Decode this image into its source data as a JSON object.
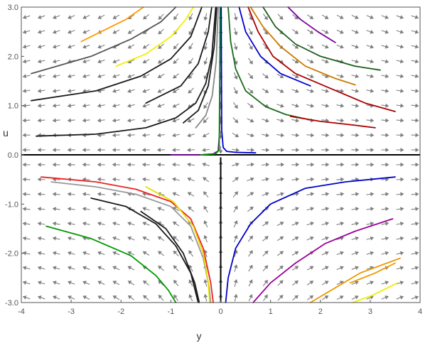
{
  "chart_data": {
    "type": "line",
    "title": "",
    "xlabel": "y",
    "ylabel": "u",
    "xlim": [
      -4,
      4
    ],
    "ylim": [
      -3,
      3
    ],
    "xticks": [
      -4,
      -3,
      -2,
      -1,
      0,
      1,
      2,
      3,
      4
    ],
    "yticks": [
      -3,
      -2,
      -1,
      0,
      1,
      2,
      3
    ],
    "xtick_labels": [
      "-4",
      "-3",
      "-2",
      "-1",
      "0",
      "1",
      "2",
      "3",
      "4"
    ],
    "ytick_labels": [
      "-3.0",
      "-2.0",
      "-1.0",
      "0.0",
      "1.0",
      "2.0",
      "3.0"
    ],
    "grid": false,
    "legend": "none",
    "direction_field": {
      "color": "#7f7f7f",
      "x_range": [
        -3.9,
        3.9
      ],
      "x_step": 0.3,
      "y_range": [
        -2.9,
        2.9
      ],
      "y_step": 0.3,
      "description": "slope field with arrows pointing toward u = 0 and away from y = 0"
    },
    "reference_lines": [
      {
        "orientation": "horizontal",
        "value": 0,
        "color": "#000000"
      },
      {
        "orientation": "vertical",
        "value": 0,
        "color": "#000000",
        "range": [
          -3,
          -0.05
        ]
      }
    ],
    "series": [
      {
        "color": "#1a1a1a",
        "points": [
          [
            -3.7,
            0.38
          ],
          [
            -2.5,
            0.42
          ],
          [
            -1.5,
            0.55
          ],
          [
            -0.9,
            0.75
          ],
          [
            -0.5,
            1.05
          ],
          [
            -0.3,
            1.45
          ],
          [
            -0.18,
            2.0
          ],
          [
            -0.1,
            3.0
          ]
        ]
      },
      {
        "color": "#1a1a1a",
        "points": [
          [
            -3.8,
            1.1
          ],
          [
            -2.5,
            1.3
          ],
          [
            -1.6,
            1.6
          ],
          [
            -1.0,
            1.95
          ],
          [
            -0.6,
            2.4
          ],
          [
            -0.38,
            3.0
          ]
        ]
      },
      {
        "color": "#555555",
        "points": [
          [
            -3.8,
            1.65
          ],
          [
            -2.6,
            2.0
          ],
          [
            -1.8,
            2.35
          ],
          [
            -1.2,
            2.7
          ],
          [
            -0.9,
            3.0
          ]
        ]
      },
      {
        "color": "#f0f000",
        "points": [
          [
            -2.1,
            1.8
          ],
          [
            -1.5,
            2.05
          ],
          [
            -1.0,
            2.4
          ],
          [
            -0.7,
            2.75
          ],
          [
            -0.55,
            3.0
          ]
        ]
      },
      {
        "color": "#ff9900",
        "points": [
          [
            -2.8,
            2.3
          ],
          [
            -2.3,
            2.55
          ],
          [
            -1.9,
            2.75
          ],
          [
            -1.55,
            3.0
          ]
        ]
      },
      {
        "color": "#1a1a1a",
        "points": [
          [
            -1.5,
            1.05
          ],
          [
            -0.8,
            1.4
          ],
          [
            -0.45,
            1.85
          ],
          [
            -0.25,
            2.5
          ],
          [
            -0.18,
            3.0
          ]
        ]
      },
      {
        "color": "#1a1a1a",
        "points": [
          [
            -0.75,
            0.65
          ],
          [
            -0.45,
            0.9
          ],
          [
            -0.25,
            1.4
          ],
          [
            -0.13,
            2.2
          ],
          [
            -0.08,
            3.0
          ]
        ]
      },
      {
        "color": "#888888",
        "points": [
          [
            -0.5,
            0.55
          ],
          [
            -0.3,
            0.8
          ],
          [
            -0.17,
            1.2
          ],
          [
            -0.09,
            1.9
          ],
          [
            -0.05,
            3.0
          ]
        ]
      },
      {
        "color": "#7a0099",
        "points": [
          [
            -1.0,
            0.0
          ],
          [
            -0.4,
            0.0
          ],
          [
            -0.15,
            0.02
          ],
          [
            -0.05,
            0.08
          ],
          [
            -0.02,
            0.5
          ],
          [
            -0.01,
            3.0
          ]
        ]
      },
      {
        "color": "#009900",
        "points": [
          [
            -0.4,
            0.0
          ],
          [
            -0.1,
            0.02
          ],
          [
            -0.03,
            0.1
          ],
          [
            -0.01,
            3.0
          ]
        ]
      },
      {
        "color": "#0000cc",
        "points": [
          [
            0.7,
            0.04
          ],
          [
            0.3,
            0.05
          ],
          [
            0.12,
            0.07
          ],
          [
            0.05,
            0.15
          ],
          [
            0.02,
            0.5
          ],
          [
            0.01,
            3.0
          ]
        ]
      },
      {
        "color": "#1a6b1a",
        "points": [
          [
            0.15,
            3.0
          ],
          [
            0.2,
            2.3
          ],
          [
            0.3,
            1.75
          ],
          [
            0.5,
            1.3
          ],
          [
            0.9,
            0.98
          ],
          [
            1.3,
            0.82
          ],
          [
            1.7,
            0.73
          ]
        ]
      },
      {
        "color": "#0000cc",
        "points": [
          [
            0.37,
            3.0
          ],
          [
            0.5,
            2.5
          ],
          [
            0.8,
            2.0
          ],
          [
            1.2,
            1.65
          ],
          [
            1.8,
            1.4
          ]
        ]
      },
      {
        "color": "#aa0000",
        "points": [
          [
            0.55,
            3.0
          ],
          [
            0.75,
            2.5
          ],
          [
            1.05,
            2.0
          ],
          [
            1.5,
            1.65
          ],
          [
            2.2,
            1.35
          ],
          [
            2.9,
            1.05
          ],
          [
            3.5,
            0.88
          ]
        ]
      },
      {
        "color": "#cc7a00",
        "points": [
          [
            0.6,
            3.0
          ],
          [
            0.85,
            2.6
          ],
          [
            1.2,
            2.2
          ],
          [
            1.7,
            1.8
          ],
          [
            2.3,
            1.55
          ],
          [
            2.7,
            1.42
          ]
        ]
      },
      {
        "color": "#aa0000",
        "points": [
          [
            1.4,
            0.78
          ],
          [
            2.0,
            0.68
          ],
          [
            2.7,
            0.6
          ],
          [
            3.1,
            0.55
          ]
        ]
      },
      {
        "color": "#1a5e1a",
        "points": [
          [
            0.85,
            3.0
          ],
          [
            1.1,
            2.6
          ],
          [
            1.5,
            2.25
          ],
          [
            2.0,
            2.0
          ],
          [
            2.7,
            1.8
          ],
          [
            3.2,
            1.72
          ]
        ]
      },
      {
        "color": "#7a0099",
        "points": [
          [
            1.35,
            3.0
          ],
          [
            1.6,
            2.75
          ],
          [
            1.95,
            2.5
          ],
          [
            2.3,
            2.28
          ]
        ]
      },
      {
        "color": "#ee2222",
        "points": [
          [
            -3.6,
            -0.45
          ],
          [
            -2.5,
            -0.55
          ],
          [
            -1.7,
            -0.7
          ],
          [
            -1.0,
            -0.95
          ],
          [
            -0.6,
            -1.3
          ],
          [
            -0.35,
            -1.9
          ],
          [
            -0.2,
            -2.6
          ],
          [
            -0.15,
            -3.0
          ]
        ]
      },
      {
        "color": "#999999",
        "points": [
          [
            -3.4,
            -0.55
          ],
          [
            -2.5,
            -0.65
          ],
          [
            -1.7,
            -0.8
          ],
          [
            -1.0,
            -1.05
          ],
          [
            -0.6,
            -1.45
          ],
          [
            -0.35,
            -2.1
          ],
          [
            -0.23,
            -2.7
          ],
          [
            -0.2,
            -3.0
          ]
        ]
      },
      {
        "color": "#1a1a1a",
        "points": [
          [
            -2.6,
            -0.88
          ],
          [
            -1.9,
            -1.05
          ],
          [
            -1.3,
            -1.4
          ],
          [
            -0.9,
            -1.85
          ],
          [
            -0.6,
            -2.4
          ],
          [
            -0.45,
            -3.0
          ]
        ]
      },
      {
        "color": "#1a1a1a",
        "points": [
          [
            -1.6,
            -1.15
          ],
          [
            -1.1,
            -1.5
          ],
          [
            -0.75,
            -2.0
          ],
          [
            -0.52,
            -2.6
          ],
          [
            -0.43,
            -3.0
          ]
        ]
      },
      {
        "color": "#e0e000",
        "points": [
          [
            -1.5,
            -0.65
          ],
          [
            -0.95,
            -0.95
          ],
          [
            -0.55,
            -1.45
          ],
          [
            -0.35,
            -2.0
          ],
          [
            -0.25,
            -2.6
          ],
          [
            -0.22,
            -3.0
          ]
        ]
      },
      {
        "color": "#009900",
        "points": [
          [
            -3.5,
            -1.45
          ],
          [
            -2.6,
            -1.7
          ],
          [
            -1.8,
            -2.05
          ],
          [
            -1.3,
            -2.45
          ],
          [
            -1.05,
            -2.75
          ],
          [
            -0.9,
            -3.0
          ]
        ]
      },
      {
        "color": "#0000cc",
        "points": [
          [
            0.1,
            -3.0
          ],
          [
            0.15,
            -2.5
          ],
          [
            0.3,
            -1.9
          ],
          [
            0.6,
            -1.4
          ],
          [
            1.0,
            -1.0
          ],
          [
            1.7,
            -0.68
          ],
          [
            2.5,
            -0.55
          ],
          [
            3.5,
            -0.45
          ]
        ]
      },
      {
        "color": "#990099",
        "points": [
          [
            0.65,
            -3.0
          ],
          [
            1.0,
            -2.6
          ],
          [
            1.5,
            -2.2
          ],
          [
            2.1,
            -1.8
          ],
          [
            2.7,
            -1.55
          ],
          [
            3.45,
            -1.3
          ]
        ]
      },
      {
        "color": "#ee9900",
        "points": [
          [
            1.8,
            -3.0
          ],
          [
            2.3,
            -2.7
          ],
          [
            2.8,
            -2.4
          ],
          [
            3.6,
            -2.1
          ]
        ]
      },
      {
        "color": "#ee9900",
        "points": [
          [
            2.6,
            -2.6
          ],
          [
            3.1,
            -2.4
          ],
          [
            3.5,
            -2.2
          ]
        ]
      },
      {
        "color": "#f0f000",
        "points": [
          [
            2.65,
            -3.0
          ],
          [
            3.05,
            -2.85
          ],
          [
            3.55,
            -2.6
          ]
        ]
      }
    ]
  }
}
